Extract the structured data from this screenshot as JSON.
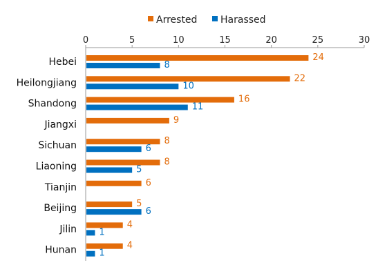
{
  "chart_data": {
    "type": "bar",
    "orientation": "horizontal",
    "categories": [
      "Hebei",
      "Heilongjiang",
      "Shandong",
      "Jiangxi",
      "Sichuan",
      "Liaoning",
      "Tianjin",
      "Beijing",
      "Jilin",
      "Hunan"
    ],
    "series": [
      {
        "name": "Arrested",
        "color": "#E36C0A",
        "values": [
          24,
          22,
          16,
          9,
          8,
          8,
          6,
          5,
          4,
          4
        ]
      },
      {
        "name": "Harassed",
        "color": "#0070C0",
        "values": [
          8,
          10,
          11,
          null,
          6,
          5,
          null,
          6,
          1,
          1
        ]
      }
    ],
    "xlim": [
      0,
      30
    ],
    "xticks": [
      0,
      5,
      10,
      15,
      20,
      25,
      30
    ],
    "x_axis_position": "top",
    "legend_position": "top",
    "grid": false,
    "title": "",
    "xlabel": "",
    "ylabel": ""
  }
}
